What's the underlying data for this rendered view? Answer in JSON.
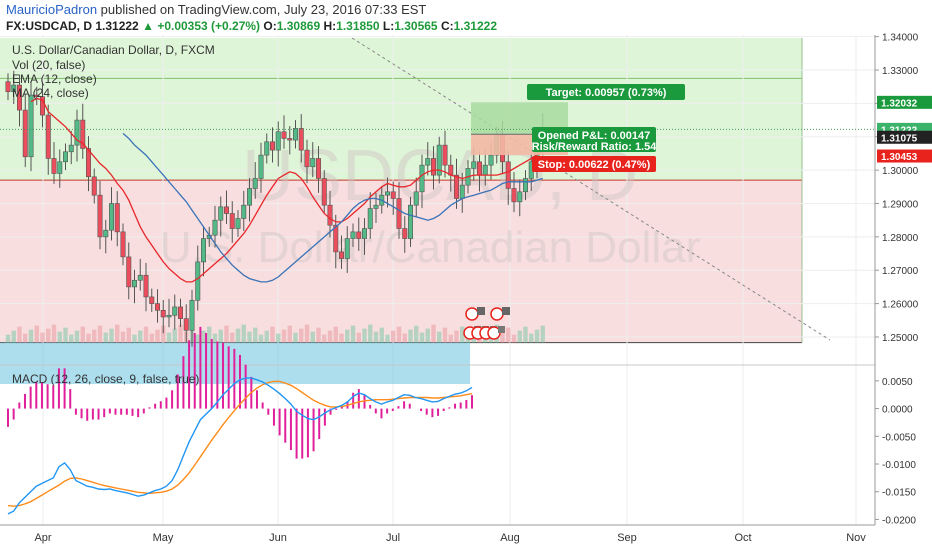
{
  "header": {
    "author": "MauricioPadron",
    "published_text": " published on TradingView.com, July 23, 2016 07:33 EST"
  },
  "quote": {
    "symbol": "FX:USDCAD, D",
    "last": "1.31222",
    "change": "+0.00353 (+0.27%)",
    "o_label": "O:",
    "o": "1.30869",
    "h_label": "H:",
    "h": "1.31850",
    "l_label": "L:",
    "l": "1.30565",
    "c_label": "C:",
    "c": "1.31222"
  },
  "legend": {
    "title": "U.S. Dollar/Canadian Dollar, D, FXCM",
    "vol": "Vol (20, false)",
    "ema": "EMA (12, close)",
    "ma": "MA (24, close)",
    "macd": "MACD (12, 26, close, 9, false, true)"
  },
  "watermark": {
    "symbol": "USDCAD, D",
    "name": "U.S. Dollar/Canadian Dollar"
  },
  "position": {
    "target": "Target: 0.00957 (0.73%)",
    "pnl": "Opened P&L: 0.00147",
    "rr": "Risk/Reward Ratio: 1.54",
    "stop": "Stop: 0.00622 (0.47%)",
    "entry": 1.31075,
    "target_price": 1.32032,
    "stop_price": 1.30453
  },
  "price_badges": [
    "1.32032",
    "1.31222",
    "1.31075",
    "1.30453"
  ],
  "colors": {
    "up": "#53b987",
    "down": "#eb4d5c",
    "ema": "#e8262b",
    "ma": "#3a73b8",
    "macd": "#2196f3",
    "signal": "#ff8c1a",
    "hist": "#e0209b",
    "green_zone": "#dff5d8",
    "red_zone": "#f8dede",
    "target_box": "#a8dba0",
    "stop_box": "#f3b9a4"
  },
  "chart_data": [
    {
      "type": "candlestick",
      "title": "U.S. Dollar/Canadian Dollar, D, FXCM",
      "ylim": [
        1.2425,
        1.3405
      ],
      "y_ticks": [
        "1.34000",
        "1.33000",
        "1.32000",
        "1.31000",
        "1.30000",
        "1.29000",
        "1.28000",
        "1.27000",
        "1.26000",
        "1.25000"
      ],
      "x_ticks": [
        "Apr",
        "May",
        "Jun",
        "Jul",
        "Aug",
        "Sep",
        "Oct",
        "Nov"
      ],
      "grid": true,
      "close": [
        1.3235,
        1.3255,
        1.318,
        1.304,
        1.3225,
        1.322,
        1.3165,
        1.3035,
        1.299,
        1.3025,
        1.3055,
        1.3075,
        1.315,
        1.3065,
        1.298,
        1.2925,
        1.28,
        1.282,
        1.29,
        1.2815,
        1.274,
        1.265,
        1.267,
        1.2685,
        1.262,
        1.26,
        1.258,
        1.256,
        1.2565,
        1.259,
        1.2555,
        1.252,
        1.261,
        1.2725,
        1.2795,
        1.2805,
        1.285,
        1.289,
        1.287,
        1.2825,
        1.2855,
        1.2895,
        1.2945,
        1.2975,
        1.3045,
        1.3085,
        1.306,
        1.3115,
        1.3095,
        1.309,
        1.3125,
        1.306,
        1.301,
        1.3035,
        1.2975,
        1.2895,
        1.2835,
        1.2755,
        1.2735,
        1.2795,
        1.2815,
        1.2795,
        1.2825,
        1.2885,
        1.2895,
        1.2925,
        1.2935,
        1.2915,
        1.2825,
        1.2795,
        1.2895,
        1.2935,
        1.3015,
        1.3035,
        1.2985,
        1.3075,
        1.3015,
        1.2985,
        1.2915,
        1.2955,
        1.3005,
        1.3025,
        1.2985,
        1.3015,
        1.3045,
        1.3105,
        1.3025,
        1.2945,
        1.2905,
        1.2935,
        1.2975,
        1.3025,
        1.3075,
        1.31222
      ],
      "ema_12": [
        1.3205,
        1.3215,
        1.321,
        1.3175,
        1.316,
        1.3145,
        1.313,
        1.311,
        1.309,
        1.308,
        1.306,
        1.304,
        1.302,
        1.3005,
        1.2985,
        1.296,
        1.294,
        1.291,
        1.287,
        1.283,
        1.28,
        1.2775,
        1.275,
        1.2725,
        1.2705,
        1.269,
        1.2675,
        1.2665,
        1.2665,
        1.2675,
        1.269,
        1.2705,
        1.272,
        1.2735,
        1.275,
        1.277,
        1.279,
        1.281,
        1.2835,
        1.2865,
        1.2895,
        1.2925,
        1.295,
        1.2975,
        1.2985,
        1.2995,
        1.299,
        1.2975,
        1.295,
        1.292,
        1.2895,
        1.287,
        1.2855,
        1.2845,
        1.2845,
        1.2855,
        1.287,
        1.2885,
        1.29,
        1.292,
        1.2935,
        1.295,
        1.296,
        1.2955,
        1.295,
        1.295,
        1.2955,
        1.297,
        1.2985,
        1.2995,
        1.3,
        1.3,
        1.2995,
        1.2985,
        1.298,
        1.2975,
        1.298,
        1.2985,
        1.2985,
        1.2985,
        1.2985,
        1.2985,
        1.299,
        1.2995,
        1.3005,
        1.3015,
        1.3025,
        1.3035,
        1.3045,
        1.306
      ],
      "ma_24": [
        1.311,
        1.3095,
        1.3075,
        1.306,
        1.3045,
        1.3025,
        1.3005,
        1.2985,
        1.2965,
        1.2945,
        1.2925,
        1.2905,
        1.288,
        1.2855,
        1.283,
        1.2805,
        1.278,
        1.2755,
        1.2735,
        1.2715,
        1.27,
        1.2685,
        1.2675,
        1.267,
        1.2665,
        1.2665,
        1.267,
        1.268,
        1.2695,
        1.271,
        1.2725,
        1.274,
        1.2755,
        1.277,
        1.2785,
        1.28,
        1.2815,
        1.283,
        1.2845,
        1.2865,
        1.2885,
        1.29,
        1.291,
        1.2915,
        1.2915,
        1.291,
        1.29,
        1.289,
        1.288,
        1.287,
        1.2865,
        1.286,
        1.2855,
        1.285,
        1.2855,
        1.2865,
        1.288,
        1.2895,
        1.2905,
        1.2915,
        1.292,
        1.2925,
        1.293,
        1.2935,
        1.294,
        1.295,
        1.296,
        1.2965,
        1.2965,
        1.2965,
        1.2965,
        1.2965,
        1.297,
        1.2975
      ]
    },
    {
      "type": "line",
      "title": "MACD (12, 26, close, 9, false, true)",
      "ylim": [
        -0.021,
        0.0075
      ],
      "y_ticks": [
        "0.0050",
        "0.0000",
        "-0.0050",
        "-0.0100",
        "-0.0150",
        "-0.0200"
      ],
      "series": [
        {
          "name": "MACD",
          "values": [
            -0.019,
            -0.0185,
            -0.017,
            -0.016,
            -0.015,
            -0.014,
            -0.0135,
            -0.013,
            -0.0125,
            -0.0105,
            -0.0098,
            -0.011,
            -0.013,
            -0.0135,
            -0.014,
            -0.0142,
            -0.0145,
            -0.0146,
            -0.0145,
            -0.0148,
            -0.015,
            -0.0152,
            -0.0155,
            -0.0158,
            -0.0156,
            -0.0152,
            -0.0148,
            -0.0145,
            -0.014,
            -0.013,
            -0.011,
            -0.0085,
            -0.006,
            -0.004,
            -0.002,
            -0.001,
            0,
            0.0012,
            0.0025,
            0.0035,
            0.0045,
            0.0052,
            0.0055,
            0.0055,
            0.0052,
            0.0048,
            0.0042,
            0.0035,
            0.0027,
            0.0018,
            0.0008,
            -0.0005,
            -0.0012,
            -0.0018,
            -0.002,
            -0.0015,
            -0.0008,
            -0.0002,
            0.0002,
            0.0006,
            0.0012,
            0.0022,
            0.0028,
            0.0025,
            0.0018,
            0.0012,
            0.0008,
            0.0012,
            0.0015,
            0.002,
            0.0025,
            0.0024,
            0.002,
            0.0018,
            0.0015,
            0.0012,
            0.0013,
            0.0018,
            0.0022,
            0.0026,
            0.0028,
            0.0032,
            0.0038
          ]
        },
        {
          "name": "Signal",
          "values": [
            -0.0175,
            -0.0176,
            -0.0175,
            -0.0172,
            -0.0168,
            -0.0162,
            -0.0156,
            -0.015,
            -0.0144,
            -0.0138,
            -0.0131,
            -0.0126,
            -0.0125,
            -0.0127,
            -0.013,
            -0.0133,
            -0.0136,
            -0.0139,
            -0.0141,
            -0.0143,
            -0.0145,
            -0.0147,
            -0.0149,
            -0.0151,
            -0.0152,
            -0.0153,
            -0.0152,
            -0.0151,
            -0.0149,
            -0.0145,
            -0.0138,
            -0.0128,
            -0.0116,
            -0.0102,
            -0.0087,
            -0.0072,
            -0.0057,
            -0.0043,
            -0.0029,
            -0.0016,
            -0.0004,
            0.0008,
            0.0019,
            0.0029,
            0.0037,
            0.0043,
            0.0047,
            0.0049,
            0.0049,
            0.0046,
            0.0042,
            0.0036,
            0.0029,
            0.0022,
            0.0015,
            0.001,
            0.0006,
            0.0003,
            0.0003,
            0.0004,
            0.0006,
            0.0009,
            0.0012,
            0.0014,
            0.0015,
            0.0016,
            0.0016,
            0.0016,
            0.0017,
            0.0018,
            0.0019,
            0.002,
            0.002,
            0.002,
            0.002,
            0.0019,
            0.0019,
            0.002,
            0.0021,
            0.0022,
            0.0023,
            0.0025,
            0.0027
          ]
        }
      ]
    }
  ]
}
